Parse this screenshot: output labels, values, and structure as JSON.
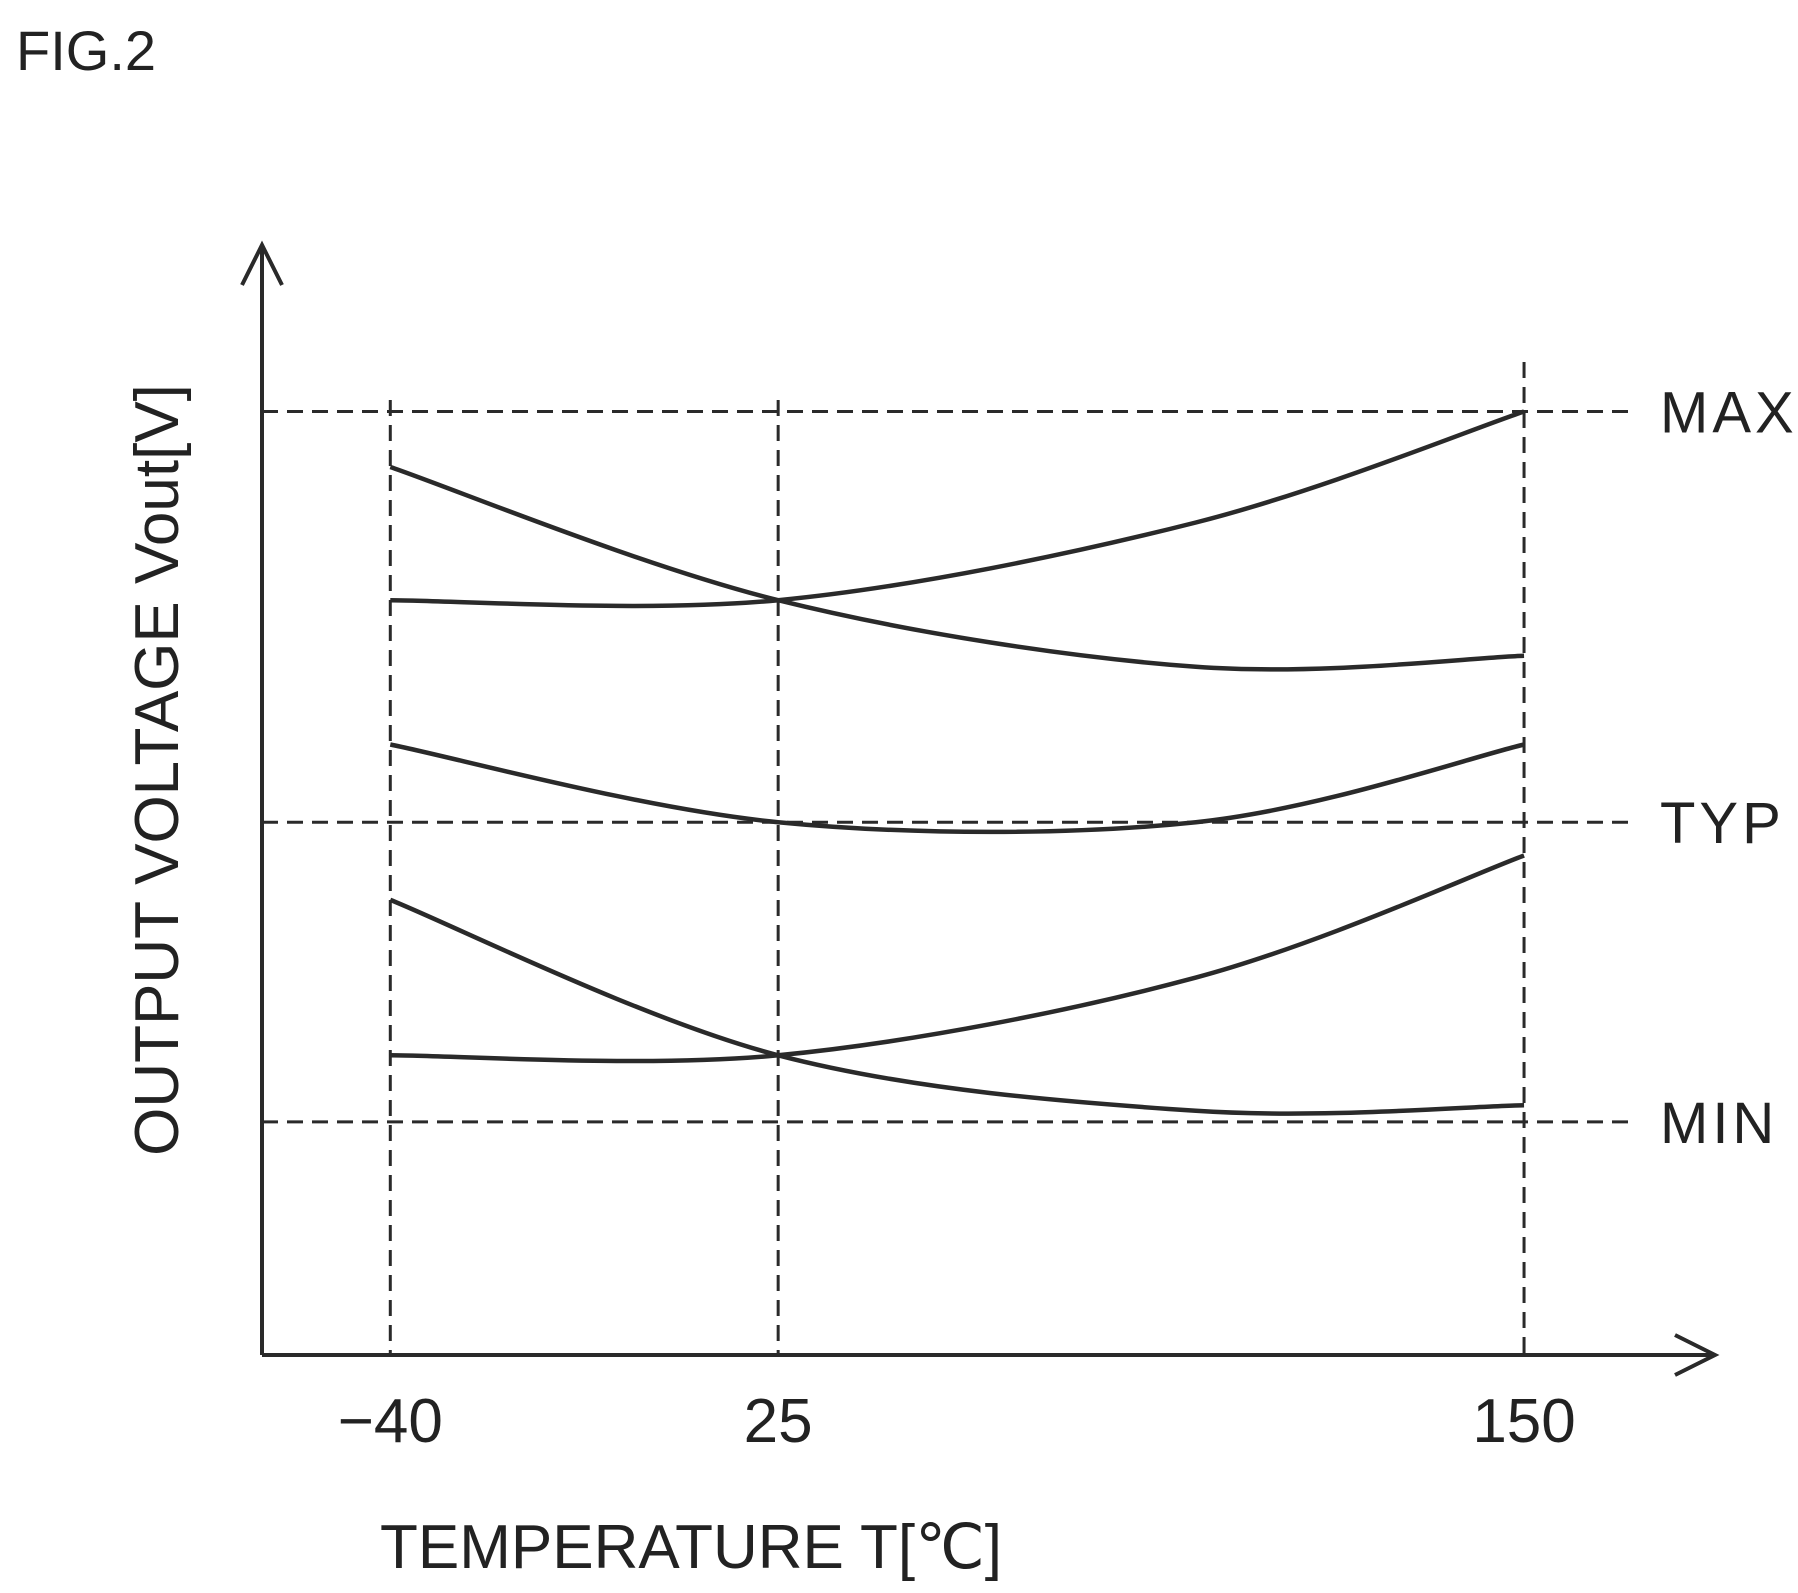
{
  "figure_label": "FIG.2",
  "chart_data": {
    "type": "line",
    "xlabel": "TEMPERATURE T[℃]",
    "ylabel": "OUTPUT VOLTAGE Vout[V]",
    "x_ticks": [
      -40,
      25,
      150
    ],
    "xlim": [
      -61.5,
      182
    ],
    "ylim": [
      0,
      100
    ],
    "grid": "dashed at x ticks and reference levels",
    "reference_levels": [
      {
        "label": "MAX",
        "value": 85
      },
      {
        "label": "TYP",
        "value": 48
      },
      {
        "label": "MIN",
        "value": 21
      }
    ],
    "series": [
      {
        "x": [
          -40,
          25,
          95,
          150
        ],
        "y": [
          80,
          68,
          62,
          63
        ]
      },
      {
        "x": [
          -40,
          25,
          95,
          150
        ],
        "y": [
          68,
          68,
          75,
          85
        ]
      },
      {
        "x": [
          -40,
          25,
          95,
          150
        ],
        "y": [
          55,
          48,
          48,
          55
        ]
      },
      {
        "x": [
          -40,
          25,
          95,
          150
        ],
        "y": [
          41,
          27,
          22,
          22.5
        ]
      },
      {
        "x": [
          -40,
          25,
          95,
          150
        ],
        "y": [
          27,
          27,
          34,
          45
        ]
      }
    ],
    "colors": {
      "line": "#2a2a2a",
      "background": "#ffffff"
    }
  }
}
